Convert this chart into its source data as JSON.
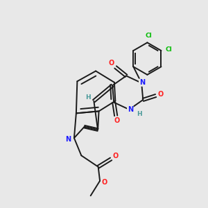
{
  "bg_color": "#e8e8e8",
  "bond_color": "#1a1a1a",
  "atom_colors": {
    "N": "#1a1aff",
    "O": "#ff2020",
    "Cl": "#00bb00",
    "H": "#4a9a9a",
    "C": "#1a1a1a"
  }
}
